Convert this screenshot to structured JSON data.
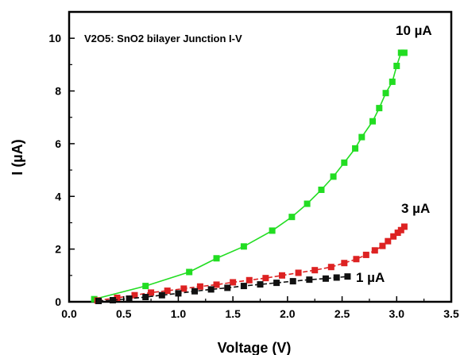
{
  "chart_data": {
    "type": "line",
    "title": "V2O5: SnO2 bilayer Junction I-V",
    "xlabel": "Voltage (V)",
    "ylabel": "I (µA)",
    "xlim": [
      0.0,
      3.5
    ],
    "ylim": [
      0,
      11
    ],
    "xticks": [
      0.0,
      0.5,
      1.0,
      1.5,
      2.0,
      2.5,
      3.0,
      3.5
    ],
    "xtick_labels": [
      "0.0",
      "0.5",
      "1.0",
      "1.5",
      "2.0",
      "2.5",
      "3.0",
      "3.5"
    ],
    "yticks": [
      0,
      2,
      4,
      6,
      8,
      10
    ],
    "ytick_labels": [
      "0",
      "2",
      "4",
      "6",
      "8",
      "10"
    ],
    "grid": false,
    "series": [
      {
        "name": "10 µA",
        "color": "#22dd22",
        "marker": "square",
        "line": "solid",
        "x": [
          0.23,
          0.7,
          1.1,
          1.35,
          1.6,
          1.86,
          2.04,
          2.18,
          2.31,
          2.42,
          2.52,
          2.62,
          2.68,
          2.78,
          2.84,
          2.9,
          2.96,
          3.0,
          3.04,
          3.07
        ],
        "y": [
          0.1,
          0.6,
          1.13,
          1.65,
          2.1,
          2.7,
          3.22,
          3.72,
          4.25,
          4.75,
          5.28,
          5.82,
          6.25,
          6.85,
          7.35,
          7.92,
          8.35,
          8.95,
          9.45,
          9.45
        ]
      },
      {
        "name": "3 µA",
        "color": "#dd2222",
        "marker": "square",
        "line": "dash",
        "x": [
          0.26,
          0.44,
          0.6,
          0.75,
          0.9,
          1.05,
          1.2,
          1.35,
          1.5,
          1.65,
          1.8,
          1.95,
          2.1,
          2.25,
          2.4,
          2.52,
          2.63,
          2.72,
          2.8,
          2.87,
          2.92,
          2.97,
          3.01,
          3.04,
          3.07
        ],
        "y": [
          0.05,
          0.15,
          0.25,
          0.35,
          0.42,
          0.5,
          0.58,
          0.65,
          0.74,
          0.82,
          0.9,
          1.0,
          1.1,
          1.2,
          1.32,
          1.47,
          1.62,
          1.78,
          1.95,
          2.12,
          2.3,
          2.48,
          2.62,
          2.72,
          2.85
        ]
      },
      {
        "name": "1 µA",
        "color": "#111111",
        "marker": "square",
        "line": "dash",
        "x": [
          0.27,
          0.4,
          0.55,
          0.7,
          0.85,
          1.0,
          1.15,
          1.3,
          1.45,
          1.6,
          1.75,
          1.9,
          2.05,
          2.2,
          2.35,
          2.45,
          2.55
        ],
        "y": [
          0.03,
          0.06,
          0.12,
          0.18,
          0.25,
          0.32,
          0.4,
          0.47,
          0.53,
          0.6,
          0.66,
          0.72,
          0.78,
          0.84,
          0.88,
          0.92,
          0.96
        ]
      }
    ]
  }
}
